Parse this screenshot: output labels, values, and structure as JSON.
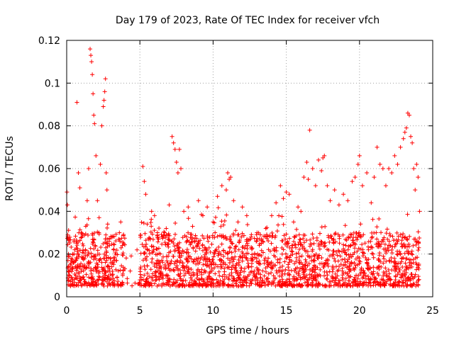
{
  "chart_data": {
    "type": "scatter",
    "title": "Day 179 of 2023, Rate Of TEC Index for receiver vfch",
    "xlabel": "GPS time / hours",
    "ylabel": "ROTI / TECUs",
    "xlim": [
      0,
      25
    ],
    "ylim": [
      0,
      0.12
    ],
    "xticks": [
      0,
      5,
      10,
      15,
      20,
      25
    ],
    "xtick_labels": [
      "0",
      "5",
      "10",
      "15",
      "20",
      "25"
    ],
    "yticks": [
      0,
      0.02,
      0.04,
      0.06,
      0.08,
      0.1,
      0.12
    ],
    "ytick_labels": [
      "0",
      "0.02",
      "0.04",
      "0.06",
      "0.08",
      "0.1",
      "0.12"
    ],
    "grid": true,
    "marker": "+",
    "series_color": "#ff0000",
    "series": [
      {
        "name": "ROTI",
        "x": [
          0.02,
          0.05,
          0.08,
          0.12,
          0.15,
          0.2,
          0.25,
          0.3,
          0.35,
          0.4,
          0.45,
          0.5,
          0.55,
          0.6,
          0.7,
          0.8,
          0.9,
          1.0,
          1.1,
          1.2,
          1.3,
          1.4,
          1.5,
          1.6,
          1.65,
          1.7,
          1.75,
          1.8,
          1.85,
          1.9,
          2.0,
          2.1,
          2.2,
          2.3,
          2.4,
          2.5,
          2.55,
          2.6,
          2.65,
          2.7,
          2.75,
          2.8,
          2.9,
          3.0,
          3.2,
          3.4,
          3.6,
          3.8,
          5.2,
          5.3,
          5.4,
          5.5,
          5.6,
          5.8,
          6.0,
          6.2,
          6.5,
          6.8,
          7.0,
          7.2,
          7.3,
          7.4,
          7.5,
          7.6,
          7.7,
          7.8,
          8.0,
          8.3,
          8.6,
          9.0,
          9.3,
          9.6,
          10.0,
          10.3,
          10.6,
          10.9,
          11.0,
          11.1,
          11.2,
          11.4,
          11.7,
          12.0,
          12.3,
          12.6,
          13.0,
          13.3,
          13.6,
          14.0,
          14.3,
          14.6,
          14.8,
          15.0,
          15.2,
          15.5,
          15.8,
          16.0,
          16.2,
          16.4,
          16.5,
          16.6,
          16.8,
          17.0,
          17.2,
          17.4,
          17.5,
          17.6,
          17.8,
          18.0,
          18.3,
          18.6,
          18.9,
          19.2,
          19.5,
          19.7,
          19.9,
          20.0,
          20.2,
          20.5,
          20.8,
          21.0,
          21.2,
          21.4,
          21.6,
          21.8,
          22.0,
          22.2,
          22.4,
          22.6,
          22.8,
          23.0,
          23.1,
          23.2,
          23.3,
          23.4,
          23.5,
          23.6,
          23.7,
          23.8,
          23.9,
          24.0,
          24.1
        ],
        "y": [
          0.049,
          0.043,
          0.028,
          0.02,
          0.012,
          0.01,
          0.015,
          0.018,
          0.009,
          0.013,
          0.016,
          0.02,
          0.022,
          0.014,
          0.091,
          0.058,
          0.051,
          0.03,
          0.018,
          0.014,
          0.033,
          0.045,
          0.06,
          0.116,
          0.113,
          0.11,
          0.104,
          0.095,
          0.085,
          0.081,
          0.066,
          0.045,
          0.03,
          0.062,
          0.08,
          0.089,
          0.092,
          0.096,
          0.102,
          0.058,
          0.05,
          0.034,
          0.026,
          0.018,
          0.022,
          0.017,
          0.03,
          0.024,
          0.061,
          0.054,
          0.048,
          0.034,
          0.027,
          0.04,
          0.038,
          0.03,
          0.028,
          0.032,
          0.043,
          0.075,
          0.072,
          0.069,
          0.063,
          0.058,
          0.069,
          0.06,
          0.04,
          0.042,
          0.033,
          0.045,
          0.038,
          0.042,
          0.035,
          0.047,
          0.052,
          0.05,
          0.058,
          0.055,
          0.056,
          0.045,
          0.035,
          0.042,
          0.038,
          0.028,
          0.03,
          0.025,
          0.032,
          0.038,
          0.044,
          0.052,
          0.046,
          0.049,
          0.048,
          0.035,
          0.042,
          0.04,
          0.056,
          0.063,
          0.055,
          0.078,
          0.06,
          0.052,
          0.064,
          0.059,
          0.065,
          0.066,
          0.052,
          0.045,
          0.05,
          0.043,
          0.048,
          0.045,
          0.054,
          0.056,
          0.062,
          0.066,
          0.052,
          0.058,
          0.044,
          0.056,
          0.07,
          0.062,
          0.06,
          0.052,
          0.06,
          0.058,
          0.066,
          0.062,
          0.07,
          0.074,
          0.077,
          0.079,
          0.086,
          0.085,
          0.075,
          0.072,
          0.06,
          0.05,
          0.062,
          0.056,
          0.04
        ]
      }
    ],
    "background_band": {
      "note": "dense cloud of points spanning most of the day",
      "typical_min": 0.005,
      "typical_max": 0.03
    }
  }
}
